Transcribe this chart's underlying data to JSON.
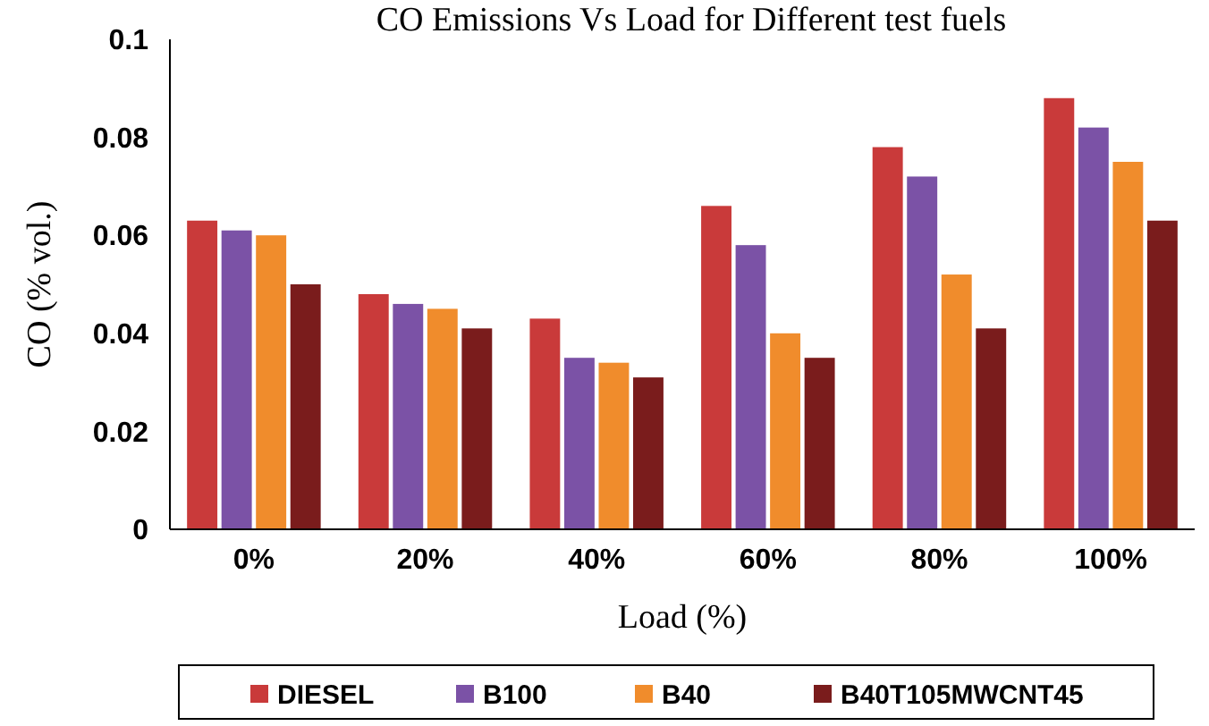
{
  "chart_data": {
    "type": "bar",
    "title": "CO Emissions Vs Load for Different test fuels",
    "xlabel": "Load (%)",
    "ylabel": "CO (% vol.)",
    "categories": [
      "0%",
      "20%",
      "40%",
      "60%",
      "80%",
      "100%"
    ],
    "series": [
      {
        "name": "DIESEL",
        "color": "#c93a3a",
        "values": [
          0.063,
          0.048,
          0.043,
          0.066,
          0.078,
          0.088
        ]
      },
      {
        "name": "B100",
        "color": "#7b52a6",
        "values": [
          0.061,
          0.046,
          0.035,
          0.058,
          0.072,
          0.082
        ]
      },
      {
        "name": "B40",
        "color": "#f08c2c",
        "values": [
          0.06,
          0.045,
          0.034,
          0.04,
          0.052,
          0.075
        ]
      },
      {
        "name": "B40T105MWCNT45",
        "color": "#7a1c1c",
        "values": [
          0.05,
          0.041,
          0.031,
          0.035,
          0.041,
          0.063
        ]
      }
    ],
    "ylim": [
      0,
      0.1
    ],
    "yticks": [
      0,
      0.02,
      0.04,
      0.06,
      0.08,
      0.1
    ],
    "legend": "bottom",
    "grid": false
  }
}
